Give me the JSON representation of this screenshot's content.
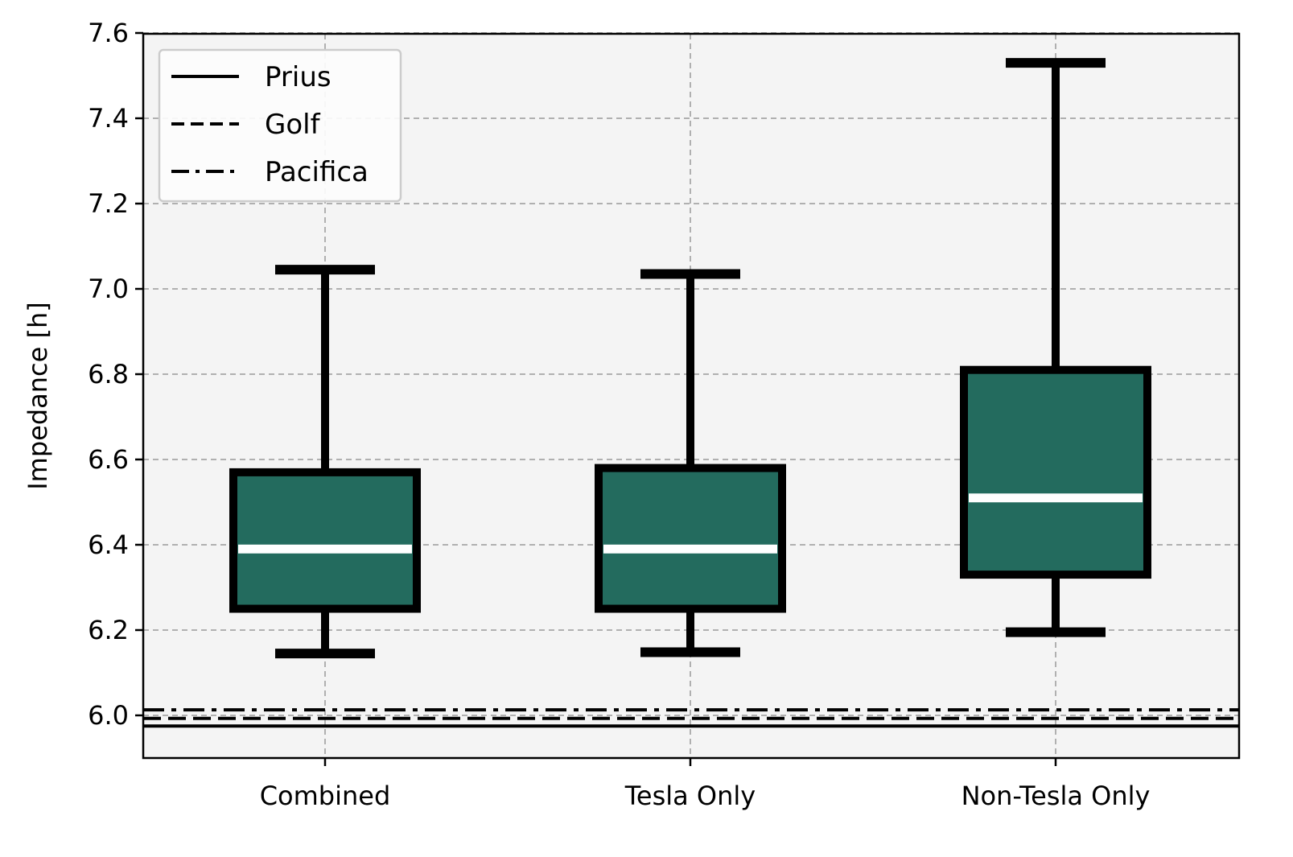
{
  "chart_data": {
    "type": "box",
    "ylabel": "Impedance [h]",
    "xlabel": "",
    "title": "",
    "ylim": [
      5.9,
      7.61
    ],
    "yticks": [
      6.0,
      6.2,
      6.4,
      6.6,
      6.8,
      7.0,
      7.2,
      7.4,
      7.6
    ],
    "ytick_labels": [
      "6.0",
      "6.2",
      "6.4",
      "6.6",
      "6.8",
      "7.0",
      "7.2",
      "7.4",
      "7.6"
    ],
    "grid": true,
    "categories": [
      "Combined",
      "Tesla Only",
      "Non-Tesla Only"
    ],
    "boxes": [
      {
        "category": "Combined",
        "whislo": 6.145,
        "q1": 6.25,
        "median": 6.39,
        "q3": 6.57,
        "whishi": 7.045
      },
      {
        "category": "Tesla Only",
        "whislo": 6.148,
        "q1": 6.25,
        "median": 6.39,
        "q3": 6.58,
        "whishi": 7.035
      },
      {
        "category": "Non-Tesla Only",
        "whislo": 6.195,
        "q1": 6.33,
        "median": 6.51,
        "q3": 6.81,
        "whishi": 7.53
      }
    ],
    "box_color": "#236b5e",
    "median_color": "#ffffff",
    "reference_lines": [
      {
        "name": "Prius",
        "value": 5.975,
        "style": "solid"
      },
      {
        "name": "Golf",
        "value": 5.993,
        "style": "dashed"
      },
      {
        "name": "Pacifica",
        "value": 6.013,
        "style": "dashdot"
      }
    ],
    "legend_position": "top-left"
  }
}
